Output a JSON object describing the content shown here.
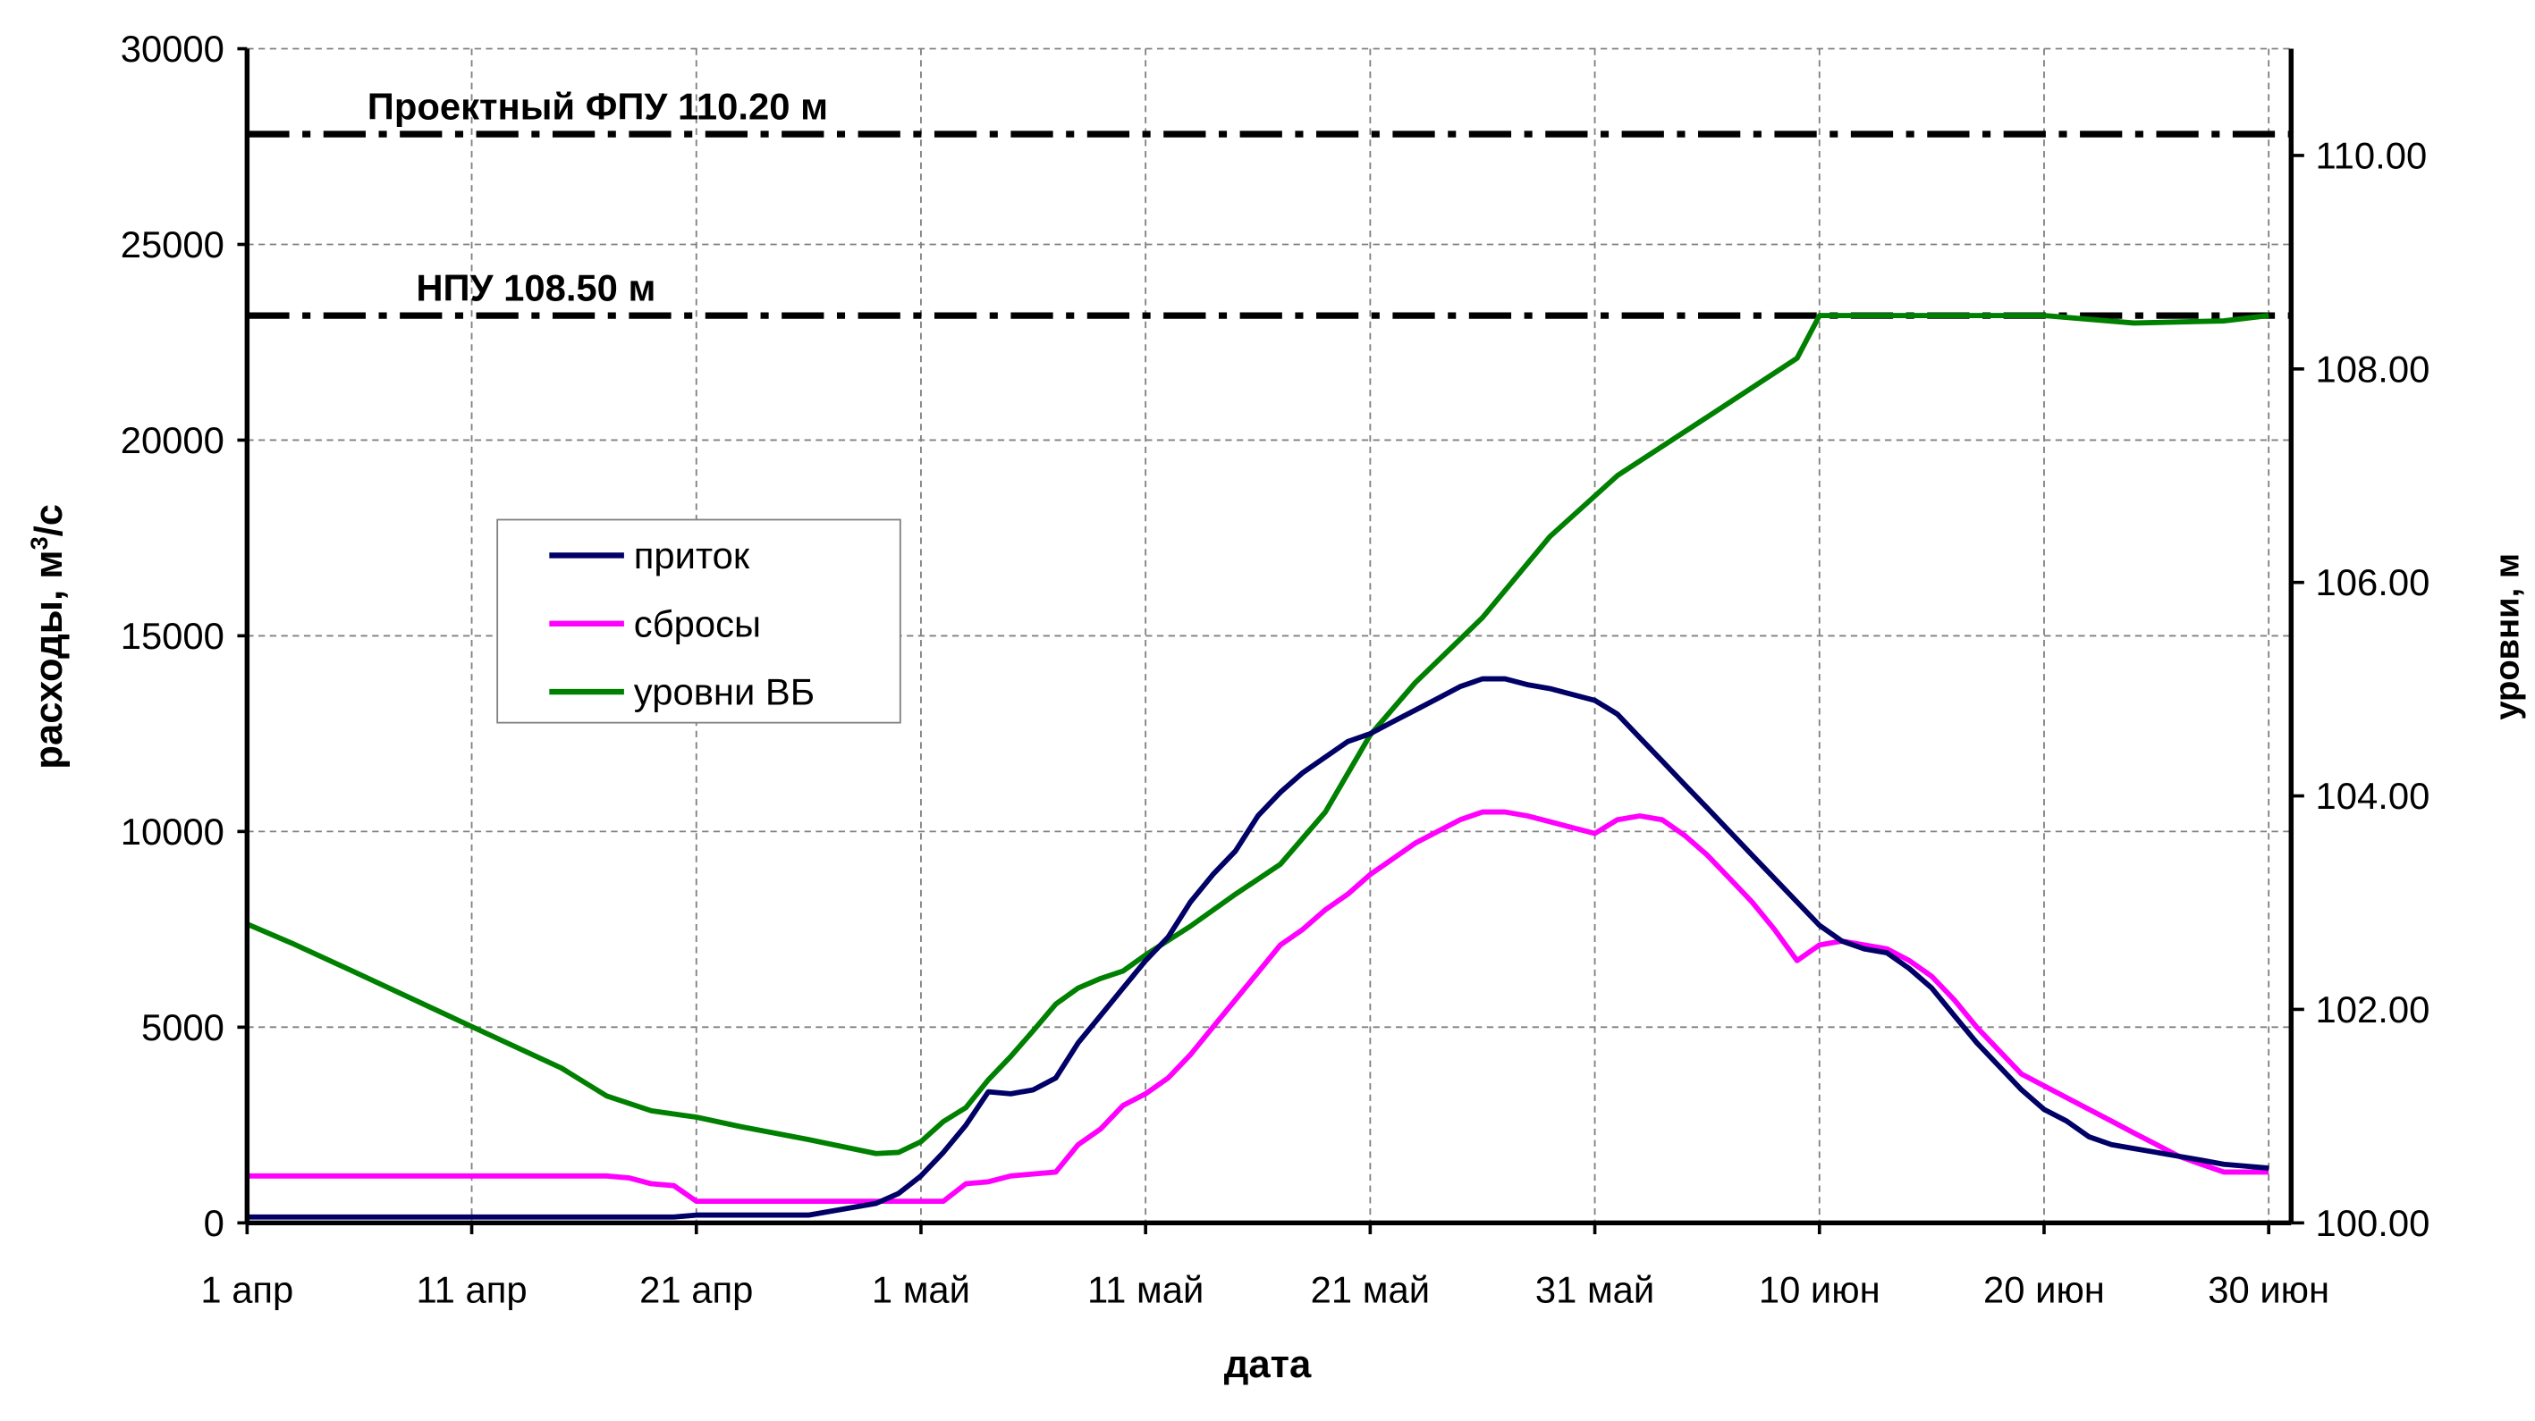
{
  "chart_data": {
    "type": "line",
    "xlabel": "дата",
    "ylabel": "расходы, м",
    "ylabel_sup": "3",
    "ylabel_suffix": "/с",
    "y2label": "уровни, м",
    "x_domain_days": [
      0,
      91
    ],
    "xticks": [
      {
        "day": 0,
        "label": "1 апр"
      },
      {
        "day": 10,
        "label": "11 апр"
      },
      {
        "day": 20,
        "label": "21 апр"
      },
      {
        "day": 30,
        "label": "1 май"
      },
      {
        "day": 40,
        "label": "11 май"
      },
      {
        "day": 50,
        "label": "21 май"
      },
      {
        "day": 60,
        "label": "31 май"
      },
      {
        "day": 70,
        "label": "10 июн"
      },
      {
        "day": 80,
        "label": "20 июн"
      },
      {
        "day": 90,
        "label": "30 июн"
      }
    ],
    "ylim": [
      0,
      30000
    ],
    "yticks": [
      "0",
      "5000",
      "10000",
      "15000",
      "20000",
      "25000",
      "30000"
    ],
    "y2lim": [
      100,
      111
    ],
    "y2ticks": [
      "100.00",
      "102.00",
      "104.00",
      "106.00",
      "108.00",
      "110.00"
    ],
    "grid": true,
    "legend_position": "center-left",
    "reference_lines": [
      {
        "label": "Проектный ФПУ 110.20 м",
        "level": 110.2
      },
      {
        "label": "НПУ 108.50 м",
        "level": 108.5
      }
    ],
    "series": [
      {
        "name": "приток",
        "axis": "left",
        "color": "#000066",
        "days": [
          0,
          5,
          10,
          15,
          19,
          20,
          25,
          26,
          28,
          29,
          30,
          31,
          32,
          33,
          34,
          35,
          36,
          37,
          38,
          39,
          40,
          41,
          42,
          43,
          44,
          45,
          46,
          47,
          48,
          49,
          50,
          51,
          52,
          53,
          54,
          55,
          56,
          57,
          58,
          59,
          60,
          61,
          62,
          63,
          64,
          65,
          66,
          67,
          68,
          69,
          70,
          71,
          72,
          73,
          74,
          75,
          76,
          77,
          78,
          79,
          80,
          81,
          82,
          83,
          84,
          85,
          86,
          87,
          88,
          89,
          90
        ],
        "values": [
          150,
          150,
          150,
          150,
          150,
          200,
          200,
          300,
          500,
          750,
          1200,
          1800,
          2500,
          3350,
          3300,
          3400,
          3700,
          4600,
          5300,
          6000,
          6700,
          7300,
          8200,
          8900,
          9500,
          10400,
          11000,
          11500,
          11900,
          12300,
          12500,
          12800,
          13100,
          13400,
          13700,
          13900,
          13900,
          13750,
          13650,
          13500,
          13350,
          13000,
          12400,
          11800,
          11200,
          10600,
          10000,
          9400,
          8800,
          8200,
          7600,
          7200,
          7000,
          6900,
          6500,
          6000,
          5300,
          4600,
          4000,
          3400,
          2900,
          2600,
          2200,
          2000,
          1900,
          1800,
          1700,
          1600,
          1500,
          1450,
          1400
        ]
      },
      {
        "name": "сбросы",
        "axis": "left",
        "color": "#ff00ff",
        "days": [
          0,
          10,
          16,
          17,
          18,
          19,
          20,
          31,
          32,
          33,
          34,
          35,
          36,
          37,
          38,
          39,
          40,
          41,
          42,
          43,
          44,
          45,
          46,
          47,
          48,
          49,
          50,
          51,
          52,
          53,
          54,
          55,
          56,
          57,
          58,
          59,
          60,
          61,
          62,
          63,
          64,
          65,
          66,
          67,
          68,
          69,
          70,
          71,
          72,
          73,
          74,
          75,
          76,
          77,
          78,
          79,
          80,
          81,
          82,
          83,
          84,
          85,
          86,
          87,
          88,
          89,
          90
        ],
        "values": [
          1200,
          1200,
          1200,
          1150,
          1000,
          950,
          550,
          550,
          1000,
          1050,
          1200,
          1250,
          1300,
          2000,
          2400,
          3000,
          3300,
          3700,
          4300,
          5000,
          5700,
          6400,
          7100,
          7500,
          8000,
          8400,
          8900,
          9300,
          9700,
          10000,
          10300,
          10500,
          10500,
          10400,
          10250,
          10100,
          9950,
          10300,
          10400,
          10300,
          9900,
          9400,
          8800,
          8200,
          7500,
          6700,
          7100,
          7200,
          7100,
          7000,
          6700,
          6300,
          5700,
          5000,
          4400,
          3800,
          3500,
          3200,
          2900,
          2600,
          2300,
          2000,
          1700,
          1500,
          1300,
          1300,
          1300
        ]
      },
      {
        "name": "уровни ВБ",
        "axis": "right",
        "color": "#008000",
        "days": [
          0,
          2,
          5,
          10,
          14,
          16,
          18,
          20,
          22,
          25,
          28,
          29,
          30,
          31,
          32,
          33,
          34,
          35,
          36,
          37,
          38,
          39,
          40,
          42,
          44,
          46,
          48,
          50,
          52,
          55,
          58,
          61,
          65,
          69,
          70,
          75,
          80,
          84,
          88,
          90
        ],
        "values": [
          102.8,
          102.62,
          102.33,
          101.84,
          101.45,
          101.19,
          101.05,
          100.99,
          100.9,
          100.78,
          100.65,
          100.66,
          100.76,
          100.95,
          101.08,
          101.34,
          101.56,
          101.8,
          102.05,
          102.2,
          102.29,
          102.36,
          102.51,
          102.78,
          103.08,
          103.36,
          103.85,
          104.57,
          105.06,
          105.67,
          106.43,
          107.0,
          107.55,
          108.1,
          108.5,
          108.5,
          108.5,
          108.43,
          108.45,
          108.5
        ]
      }
    ]
  }
}
